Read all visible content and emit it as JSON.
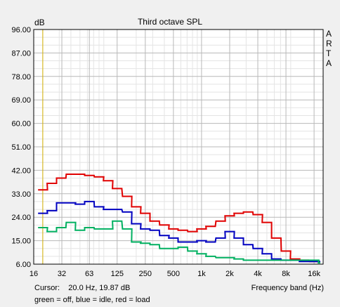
{
  "chart_data": {
    "type": "line",
    "title": "Third octave SPL",
    "ylabel": "dB",
    "xlabel": "Frequency band (Hz)",
    "side_text": [
      "A",
      "R",
      "T",
      "A"
    ],
    "ylim": [
      6,
      96
    ],
    "y_ticks": [
      "96.00",
      "87.00",
      "78.00",
      "69.00",
      "60.00",
      "51.00",
      "42.00",
      "33.00",
      "24.00",
      "15.00",
      "6.00"
    ],
    "x_scale": "log",
    "xlim": [
      16,
      20000
    ],
    "x_ticks": [
      {
        "label": "16",
        "value": 16
      },
      {
        "label": "32",
        "value": 32
      },
      {
        "label": "63",
        "value": 63
      },
      {
        "label": "125",
        "value": 125
      },
      {
        "label": "250",
        "value": 250
      },
      {
        "label": "500",
        "value": 500
      },
      {
        "label": "1k",
        "value": 1000
      },
      {
        "label": "2k",
        "value": 2000
      },
      {
        "label": "4k",
        "value": 4000
      },
      {
        "label": "8k",
        "value": 8000
      },
      {
        "label": "16k",
        "value": 16000
      }
    ],
    "grid": true,
    "cursor": {
      "x": 20,
      "color": "#d4b000"
    },
    "cursor_readout": "Cursor:    20.0 Hz, 19.87 dB",
    "legend_text": "green = off, blue = idle, red = load",
    "bands_hz": [
      20,
      25,
      31.5,
      40,
      50,
      63,
      80,
      100,
      125,
      160,
      200,
      250,
      315,
      400,
      500,
      630,
      800,
      1000,
      1250,
      1600,
      2000,
      2500,
      3150,
      4000,
      5000,
      6300,
      8000,
      10000,
      12500,
      16000,
      20000
    ],
    "series": [
      {
        "color": "#e00000",
        "values": [
          34.5,
          37,
          39,
          40.5,
          40.5,
          40,
          39.5,
          38,
          35,
          32,
          28,
          25.5,
          22.5,
          21,
          19.5,
          19,
          18.5,
          19.5,
          20.5,
          22.5,
          24.5,
          25.5,
          26,
          25,
          22,
          16,
          11,
          8,
          7.5,
          7,
          7
        ]
      },
      {
        "color": "#0000c0",
        "values": [
          25.5,
          26.5,
          29.5,
          29.5,
          29,
          30,
          28,
          27,
          27,
          26,
          21.5,
          19.5,
          19,
          17,
          16,
          14.5,
          14.5,
          15,
          14.5,
          16,
          18.5,
          16,
          13.5,
          12,
          10,
          8,
          7.5,
          7.5,
          7,
          7,
          7
        ]
      },
      {
        "color": "#00b060",
        "values": [
          20,
          18.5,
          20,
          22,
          19,
          20,
          19.5,
          19.5,
          22.5,
          19.5,
          14.5,
          14,
          13.5,
          12,
          12,
          12.5,
          11,
          10,
          9,
          8.5,
          8.5,
          8,
          7.5,
          7.5,
          7.5,
          7.5,
          7.5,
          7.5,
          7.5,
          7.5,
          6.5
        ]
      }
    ]
  }
}
